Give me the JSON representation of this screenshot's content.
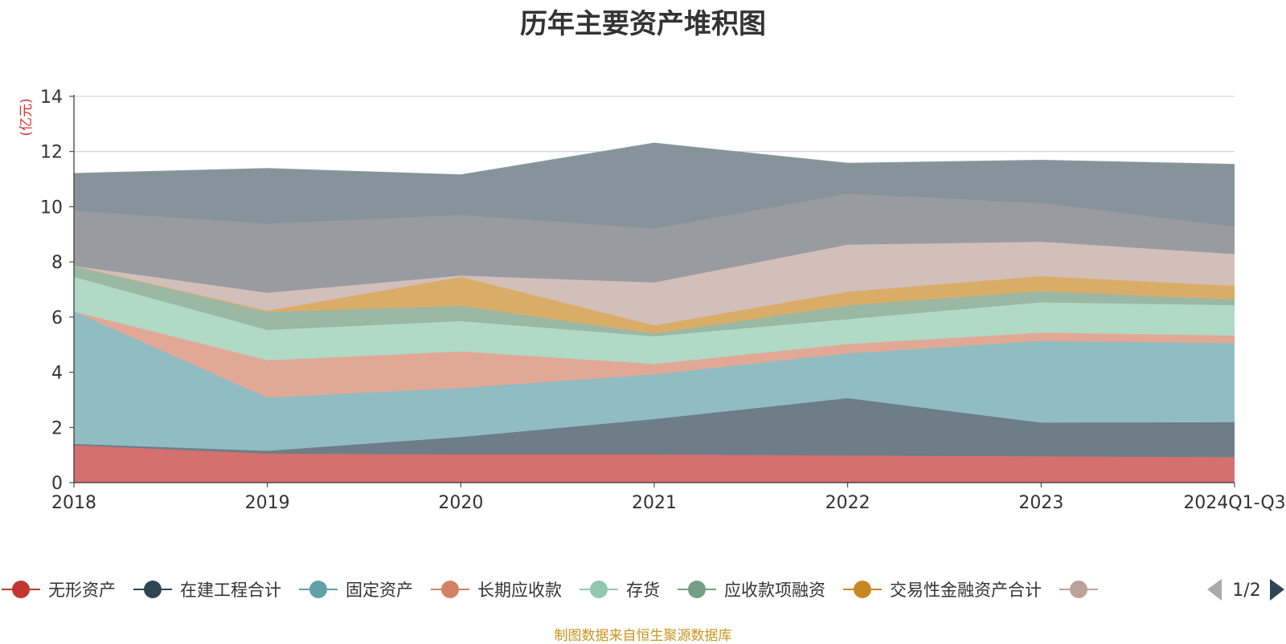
{
  "page": {
    "title": "历年主要资产堆积图",
    "source": "制图数据来自恒生聚源数据库"
  },
  "chart_data": {
    "type": "area",
    "stacked": true,
    "title": "历年主要资产堆积图",
    "ylabel": "(亿元)",
    "xlabel": "",
    "ylim": [
      0,
      14
    ],
    "yticks": [
      0,
      2,
      4,
      6,
      8,
      10,
      12,
      14
    ],
    "grid": true,
    "categories": [
      "2018",
      "2019",
      "2020",
      "2021",
      "2022",
      "2023",
      "2024Q1-Q3"
    ],
    "series": [
      {
        "name": "无形资产",
        "color": "#c23531",
        "fill": "#d4706e",
        "values": [
          1.35,
          1.05,
          1.02,
          1.02,
          0.98,
          0.95,
          0.92
        ]
      },
      {
        "name": "在建工程合计",
        "color": "#2f4554",
        "fill": "#6e7d88",
        "values": [
          0.05,
          0.1,
          0.63,
          1.28,
          2.08,
          1.22,
          1.27
        ]
      },
      {
        "name": "固定资产",
        "color": "#61a0a8",
        "fill": "#90bcc2",
        "values": [
          4.8,
          1.93,
          1.78,
          1.62,
          1.62,
          2.96,
          2.86
        ]
      },
      {
        "name": "长期应收款",
        "color": "#d48265",
        "fill": "#e1a896",
        "values": [
          0.0,
          1.35,
          1.32,
          0.38,
          0.34,
          0.3,
          0.28
        ]
      },
      {
        "name": "存货",
        "color": "#91c7ae",
        "fill": "#b0d9c6",
        "values": [
          1.25,
          1.1,
          1.1,
          1.0,
          0.9,
          1.1,
          1.1
        ]
      },
      {
        "name": "应收款项融资",
        "color": "#749f83",
        "fill": "#9ab8a4",
        "values": [
          0.4,
          0.65,
          0.55,
          0.1,
          0.5,
          0.4,
          0.2
        ]
      },
      {
        "name": "交易性金融资产合计",
        "color": "#ca8622",
        "fill": "#d9ad68",
        "values": [
          0.0,
          0.05,
          1.05,
          0.3,
          0.5,
          0.55,
          0.5
        ]
      },
      {
        "name": "",
        "color": "#bda29a",
        "fill": "#d2bfba",
        "values": [
          0.0,
          0.65,
          0.05,
          1.55,
          1.7,
          1.25,
          1.15
        ]
      },
      {
        "name": "",
        "color": "#6e7074",
        "fill": "#9a9ba0",
        "values": [
          2.0,
          2.5,
          2.2,
          1.95,
          1.85,
          1.4,
          1.0
        ]
      },
      {
        "name": "",
        "color": "#546570",
        "fill": "#86939a",
        "values": [
          1.35,
          2.0,
          1.45,
          3.1,
          1.1,
          1.55,
          2.25
        ]
      }
    ]
  },
  "legend": {
    "items": [
      {
        "label": "无形资产",
        "color": "#c23531"
      },
      {
        "label": "在建工程合计",
        "color": "#2f4554"
      },
      {
        "label": "固定资产",
        "color": "#61a0a8"
      },
      {
        "label": "长期应收款",
        "color": "#d48265"
      },
      {
        "label": "存货",
        "color": "#91c7ae"
      },
      {
        "label": "应收款项融资",
        "color": "#749f83"
      },
      {
        "label": "交易性金融资产合计",
        "color": "#ca8622"
      },
      {
        "label": "",
        "color": "#bda29a"
      }
    ],
    "page_indicator": "1/2",
    "prev_icon": "triangle-left-icon",
    "next_icon": "triangle-right-icon",
    "prev_color": "#aaaaaa",
    "next_color": "#2f4554"
  }
}
